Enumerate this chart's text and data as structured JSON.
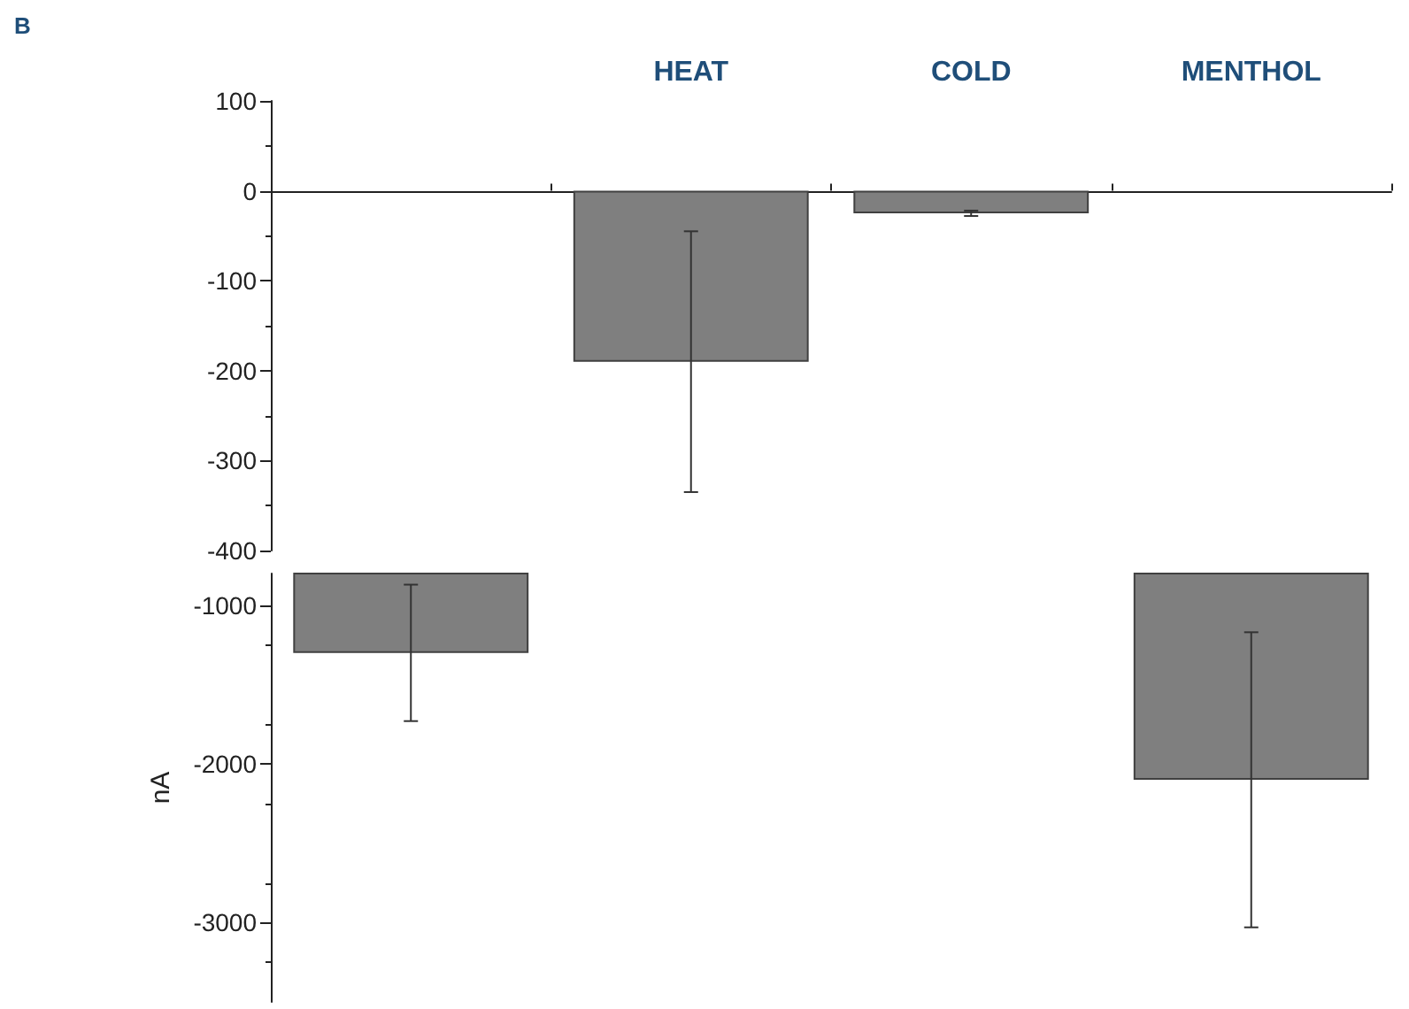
{
  "chart_data": [
    {
      "type": "bar",
      "annotations": [
        "B"
      ],
      "categories": [
        null,
        "HEAT",
        "COLD",
        "MENTHOL"
      ],
      "color": "#7f7f7f",
      "values": [
        null,
        -190,
        -25,
        null
      ],
      "errors": [
        null,
        [
          -335,
          -45
        ],
        [
          -28,
          -22
        ],
        null
      ],
      "ylim": [
        -400,
        100
      ],
      "yticks": [
        100,
        0,
        -100,
        -200,
        -300,
        -400
      ]
    },
    {
      "type": "bar",
      "ylabel": "nA",
      "categories": [
        null,
        null,
        null,
        null
      ],
      "color": "#7f7f7f",
      "values": [
        -1300,
        null,
        null,
        -2100
      ],
      "errors": [
        [
          -1730,
          -870
        ],
        null,
        null,
        [
          -3030,
          -1170
        ]
      ],
      "ylim": [
        -3500,
        -800
      ],
      "yticks": [
        -1000,
        -2000,
        -3000
      ],
      "tick_labels": "y",
      "grid": false
    }
  ]
}
